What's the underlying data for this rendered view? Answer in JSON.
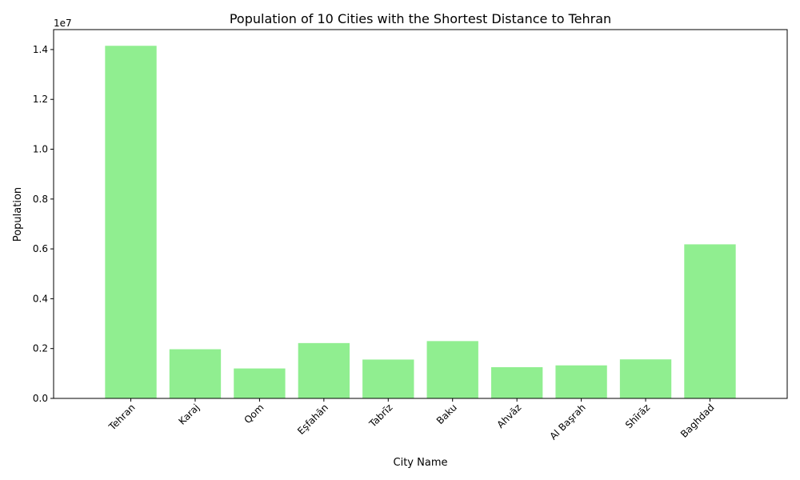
{
  "chart_data": {
    "type": "bar",
    "title": "Population of 10 Cities with the Shortest Distance to Tehran",
    "xlabel": "City Name",
    "ylabel": "Population",
    "offset_label": "1e7",
    "categories": [
      "Tehran",
      "Karaj",
      "Qom",
      "Eşfahān",
      "Tabrīz",
      "Baku",
      "Ahvāz",
      "Al Başrah",
      "Shīrāz",
      "Baghdad"
    ],
    "values": [
      14150000,
      1973000,
      1201000,
      2220000,
      1559000,
      2300000,
      1253000,
      1326000,
      1566000,
      6183000
    ],
    "ylim": [
      0,
      14800000
    ],
    "yticks": [
      0,
      2000000,
      4000000,
      6000000,
      8000000,
      10000000,
      12000000,
      14000000
    ],
    "ytick_labels": [
      "0.0",
      "0.2",
      "0.4",
      "0.6",
      "0.8",
      "1.0",
      "1.2",
      "1.4"
    ],
    "bar_color": "#90ee90",
    "grid": false,
    "legend": "none"
  }
}
